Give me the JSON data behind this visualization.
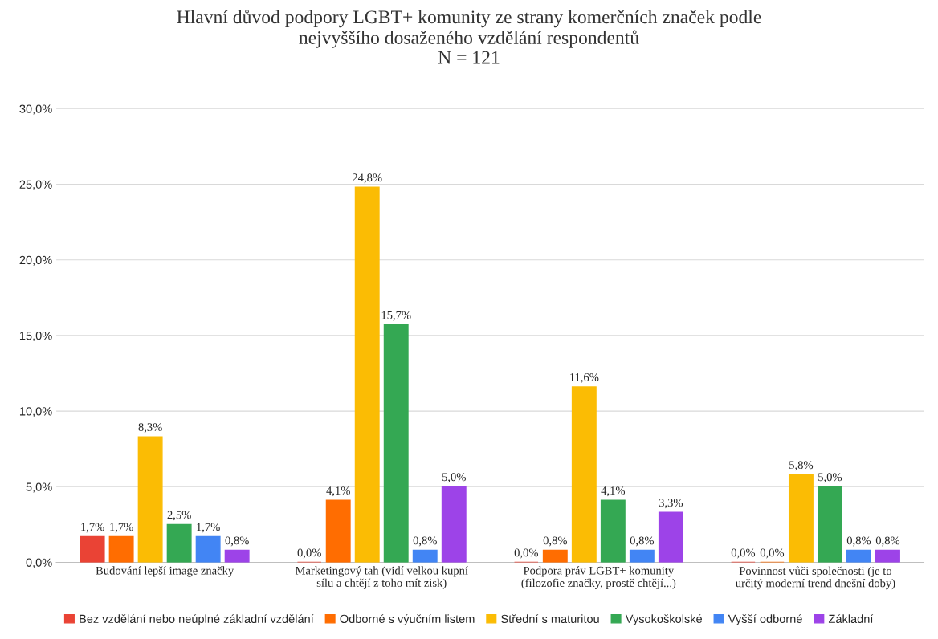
{
  "chart_data": {
    "type": "bar",
    "title": "Hlavní důvod podpory LGBT+ komunity ze strany komerčních značek podle\nnejvyššího dosaženého vzdělání respondentů\nN = 121",
    "categories": [
      "Budování lepší image značky",
      "Marketingový tah (vidí velkou kupní\nsílu a chtějí z toho mít zisk)",
      "Podpora práv LGBT+ komunity\n(filozofie značky, prostě chtějí...)",
      "Povinnost vůči společnosti (je to\nurčitý moderní trend dnešní doby)"
    ],
    "series": [
      {
        "name": "Bez vzdělání nebo neúplné základní vzdělání",
        "color": "#ea4335",
        "values": [
          1.7,
          0.0,
          0.0,
          0.0
        ],
        "value_labels": [
          "1,7%",
          "0,0%",
          "0,0%",
          "0,0%"
        ]
      },
      {
        "name": "Odborné s výučním listem",
        "color": "#ff6d01",
        "values": [
          1.7,
          4.1,
          0.8,
          0.0
        ],
        "value_labels": [
          "1,7%",
          "4,1%",
          "0,8%",
          "0,0%"
        ]
      },
      {
        "name": "Střední s maturitou",
        "color": "#fbbc04",
        "values": [
          8.3,
          24.8,
          11.6,
          5.8
        ],
        "value_labels": [
          "8,3%",
          "24,8%",
          "11,6%",
          "5,8%"
        ]
      },
      {
        "name": "Vysokoškolské",
        "color": "#34a853",
        "values": [
          2.5,
          15.7,
          4.1,
          5.0
        ],
        "value_labels": [
          "2,5%",
          "15,7%",
          "4,1%",
          "5,0%"
        ]
      },
      {
        "name": "Vyšší odborné",
        "color": "#4285f4",
        "values": [
          1.7,
          0.8,
          0.8,
          0.8
        ],
        "value_labels": [
          "1,7%",
          "0,8%",
          "0,8%",
          "0,8%"
        ]
      },
      {
        "name": "Základní",
        "color": "#9d43e8",
        "values": [
          0.8,
          5.0,
          3.3,
          0.8
        ],
        "value_labels": [
          "0,8%",
          "5,0%",
          "3,3%",
          "0,8%"
        ]
      }
    ],
    "ylim": [
      0,
      30
    ],
    "yticks": [
      {
        "value": 0,
        "label": "0,0%"
      },
      {
        "value": 5,
        "label": "5,0%"
      },
      {
        "value": 10,
        "label": "10,0%"
      },
      {
        "value": 15,
        "label": "15,0%"
      },
      {
        "value": 20,
        "label": "20,0%"
      },
      {
        "value": 25,
        "label": "25,0%"
      },
      {
        "value": 30,
        "label": "30,0%"
      }
    ],
    "grid": "y",
    "legend": "bottom"
  }
}
